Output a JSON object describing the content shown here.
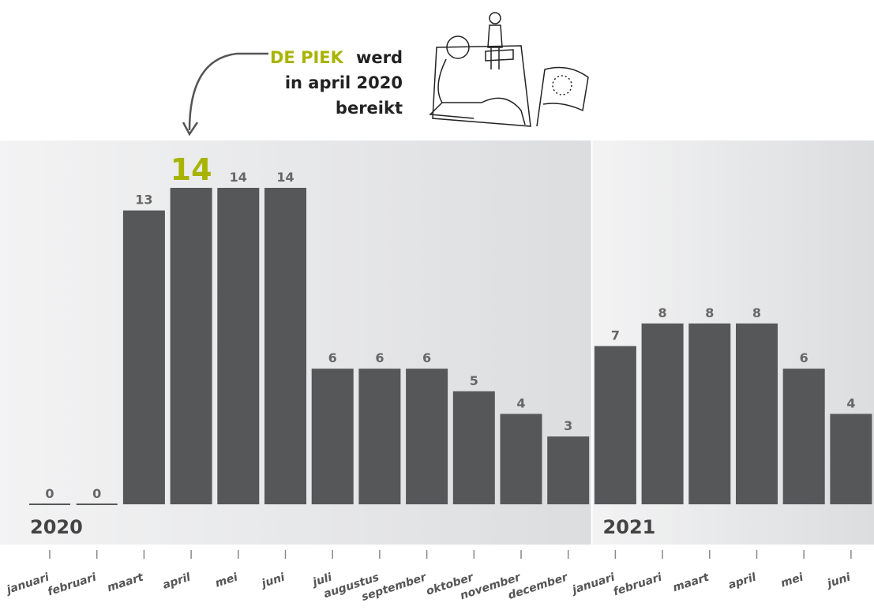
{
  "chart_data": {
    "type": "bar",
    "categories": [
      "januari",
      "februari",
      "maart",
      "april",
      "mei",
      "juni",
      "juli",
      "augustus",
      "september",
      "oktober",
      "november",
      "december",
      "januari",
      "februari",
      "maart",
      "april",
      "mei",
      "juni"
    ],
    "values": [
      0,
      0,
      13,
      14,
      14,
      14,
      6,
      6,
      6,
      5,
      4,
      3,
      7,
      8,
      8,
      8,
      6,
      4
    ],
    "color": "#555759",
    "ylim": [
      0,
      14
    ],
    "highlight": {
      "index": 3,
      "color": "#a8b400"
    },
    "years": [
      {
        "label": "2020",
        "start": 0
      },
      {
        "label": "2021",
        "start": 12
      }
    ],
    "annotation": {
      "highlight": "DE PIEK",
      "lines": [
        "werd",
        "in april 2020",
        "bereikt"
      ]
    }
  }
}
